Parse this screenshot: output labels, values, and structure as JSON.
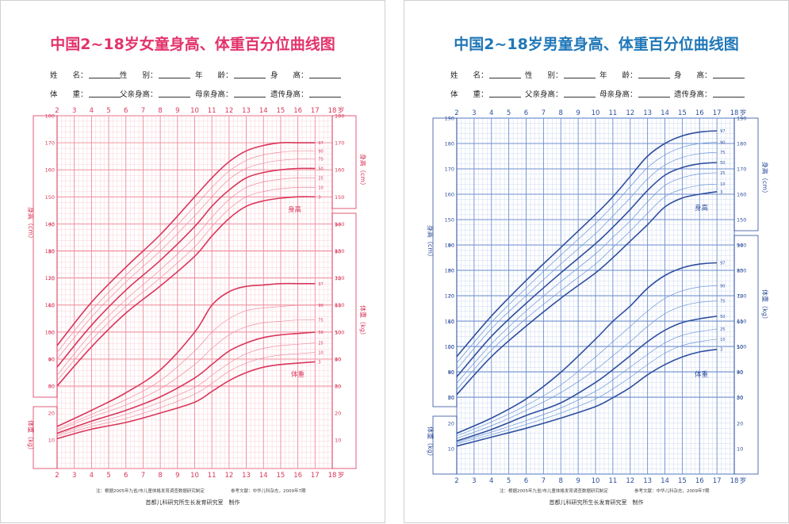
{
  "colors": {
    "girls_main": "#d9365a",
    "girls_grid": "#f08a9a",
    "girls_grid_minor": "#f9d2d8",
    "girls_title": "#e2336b",
    "girls_thin": "#ee8fa2",
    "boys_main": "#2e4f9e",
    "boys_grid": "#6f8fcf",
    "boys_grid_minor": "#cdd9f0",
    "boys_title": "#1f77b8",
    "boys_thin": "#6c97d6"
  },
  "form_labels": {
    "name": "姓　　名：",
    "sex": "性　　别：",
    "age": "年　　龄：",
    "height": "身　　高：",
    "weight": "体　　重：",
    "father": "父亲身高：",
    "mother": "母亲身高：",
    "genetic": "遗传身高："
  },
  "footer": {
    "note": "注：根据2005年九省/市儿童体格发育调查数据研究制定",
    "reference": "参考文献：中华儿科杂志，2009年7期",
    "maker": "首都儿科研究所生长发育研究室　制作"
  },
  "chart_data": [
    {
      "type": "line",
      "title": "中国2~18岁女童身高、体重百分位曲线图",
      "xlabel": "岁",
      "x_ticks": [
        "2",
        "3",
        "4",
        "5",
        "6",
        "7",
        "8",
        "9",
        "10",
        "11",
        "12",
        "13",
        "14",
        "15",
        "16",
        "17",
        "18"
      ],
      "height_axis": {
        "label": "身高（cm）",
        "range": [
          80,
          180
        ],
        "ticks": [
          "80",
          "90",
          "100",
          "110",
          "120",
          "130",
          "140",
          "150",
          "160",
          "170",
          "180"
        ]
      },
      "weight_axis": {
        "label": "体重（kg）",
        "range": [
          0,
          90
        ],
        "ticks": [
          "10",
          "20",
          "30",
          "40",
          "50",
          "60",
          "70",
          "80",
          "90"
        ]
      },
      "height_curve_label": "身高",
      "weight_curve_label": "体重",
      "x": [
        2,
        4,
        6,
        8,
        10,
        11,
        12,
        13,
        14,
        15,
        16,
        17
      ],
      "height_series": [
        {
          "name": "97",
          "values": [
            95,
            111,
            124,
            136,
            150,
            157,
            163,
            167,
            169,
            170,
            170,
            170
          ]
        },
        {
          "name": "90",
          "values": [
            92.5,
            108,
            121,
            133,
            146.5,
            153.5,
            159.5,
            163.5,
            165.5,
            166.5,
            167,
            167
          ]
        },
        {
          "name": "75",
          "values": [
            90,
            105.5,
            118.5,
            130,
            143,
            150,
            156.5,
            160.5,
            162.5,
            163.5,
            164,
            164
          ]
        },
        {
          "name": "50",
          "values": [
            87,
            102.5,
            115.5,
            126.5,
            139,
            146.5,
            152.5,
            157,
            159,
            160,
            160.5,
            160.5
          ]
        },
        {
          "name": "25",
          "values": [
            84,
            99.5,
            112,
            123,
            135,
            142.5,
            149,
            153.5,
            155.5,
            156.5,
            157,
            157
          ]
        },
        {
          "name": "10",
          "values": [
            82,
            97,
            109.5,
            120,
            131.5,
            139,
            145.5,
            150,
            152,
            153,
            153.5,
            153.5
          ]
        },
        {
          "name": "3",
          "values": [
            80,
            94.5,
            107,
            117,
            128,
            135.5,
            142,
            146.5,
            148.5,
            149.5,
            150,
            150
          ]
        }
      ],
      "weight_series": [
        {
          "name": "97",
          "values": [
            15,
            21,
            27.5,
            36,
            50,
            60,
            65,
            67,
            67.5,
            68,
            68,
            68
          ]
        },
        {
          "name": "90",
          "values": [
            14,
            19.5,
            25,
            32,
            43,
            50,
            55,
            58,
            59,
            59.5,
            60,
            60
          ]
        },
        {
          "name": "75",
          "values": [
            13.5,
            18.5,
            23,
            29,
            38,
            44,
            49,
            52,
            53.5,
            54,
            54.5,
            54.5
          ]
        },
        {
          "name": "50",
          "values": [
            12.5,
            17,
            21,
            26,
            33,
            38,
            43,
            46,
            48,
            49,
            49.5,
            50
          ]
        },
        {
          "name": "25",
          "values": [
            12,
            16,
            19.5,
            24,
            29.5,
            34,
            38.5,
            42,
            44,
            45,
            45.5,
            46
          ]
        },
        {
          "name": "10",
          "values": [
            11.5,
            15,
            18,
            22,
            27,
            31,
            35.5,
            38.5,
            40.5,
            41.5,
            42,
            42.5
          ]
        },
        {
          "name": "3",
          "values": [
            10.5,
            14,
            16.5,
            20,
            24,
            28,
            32,
            35,
            37,
            38,
            38.5,
            39
          ]
        }
      ]
    },
    {
      "type": "line",
      "title": "中国2~18岁男童身高、体重百分位曲线图",
      "xlabel": "岁",
      "x_ticks": [
        "2",
        "3",
        "4",
        "5",
        "6",
        "7",
        "8",
        "9",
        "10",
        "11",
        "12",
        "13",
        "14",
        "15",
        "16",
        "17",
        "18"
      ],
      "height_axis": {
        "label": "身高（cm）",
        "range": [
          80,
          190
        ],
        "ticks": [
          "80",
          "90",
          "100",
          "110",
          "120",
          "130",
          "140",
          "150",
          "160",
          "170",
          "180",
          "190"
        ]
      },
      "weight_axis": {
        "label": "体重（kg）",
        "range": [
          0,
          90
        ],
        "ticks": [
          "10",
          "20",
          "30",
          "40",
          "50",
          "60",
          "70",
          "80",
          "90"
        ]
      },
      "height_curve_label": "身高",
      "weight_curve_label": "体重",
      "x": [
        2,
        4,
        6,
        8,
        10,
        11,
        12,
        13,
        14,
        15,
        16,
        17
      ],
      "height_series": [
        {
          "name": "97",
          "values": [
            96,
            112,
            126,
            139,
            152,
            159,
            167,
            175,
            180,
            183,
            184.5,
            185
          ]
        },
        {
          "name": "90",
          "values": [
            93.5,
            109.5,
            123,
            136,
            148.5,
            155.5,
            163,
            170.5,
            175.5,
            178.5,
            180,
            180.5
          ]
        },
        {
          "name": "75",
          "values": [
            91,
            107,
            120,
            132.5,
            144.5,
            151.5,
            158.5,
            166,
            171.5,
            174.5,
            176,
            176.5
          ]
        },
        {
          "name": "50",
          "values": [
            88,
            104,
            117,
            129,
            140.5,
            147,
            154,
            161.5,
            167.5,
            170.5,
            172,
            172.5
          ]
        },
        {
          "name": "25",
          "values": [
            85.5,
            101,
            114,
            125.5,
            136.5,
            143,
            149.5,
            157,
            163.5,
            166.5,
            168,
            168.5
          ]
        },
        {
          "name": "10",
          "values": [
            83,
            98.5,
            111,
            122,
            132.5,
            139,
            145.5,
            152.5,
            159,
            162,
            163.5,
            164
          ]
        },
        {
          "name": "3",
          "values": [
            81,
            96,
            108,
            119,
            129,
            135,
            141.5,
            148,
            155,
            158.5,
            160,
            161
          ]
        }
      ],
      "weight_series": [
        {
          "name": "97",
          "values": [
            16,
            22,
            29.5,
            40,
            53,
            60,
            66,
            73,
            78,
            81,
            82.5,
            83
          ]
        },
        {
          "name": "90",
          "values": [
            15,
            20.5,
            27,
            35,
            46,
            52,
            58,
            64,
            69,
            72,
            73.5,
            74
          ]
        },
        {
          "name": "75",
          "values": [
            14,
            19,
            25,
            32,
            41,
            46.5,
            52,
            58,
            63,
            66,
            67.5,
            68
          ]
        },
        {
          "name": "50",
          "values": [
            13,
            17.5,
            23,
            28,
            36,
            41,
            46.5,
            52,
            56.5,
            59.5,
            61,
            62
          ]
        },
        {
          "name": "25",
          "values": [
            12.5,
            16.5,
            21,
            26,
            32.5,
            37,
            42,
            47,
            51.5,
            54.5,
            56,
            57
          ]
        },
        {
          "name": "10",
          "values": [
            12,
            15.5,
            19.5,
            24,
            29.5,
            33.5,
            38,
            43,
            47.5,
            50.5,
            52,
            53
          ]
        },
        {
          "name": "3",
          "values": [
            11,
            14.5,
            18,
            22,
            26.5,
            30,
            34,
            39,
            43,
            46,
            48,
            49
          ]
        }
      ]
    }
  ]
}
